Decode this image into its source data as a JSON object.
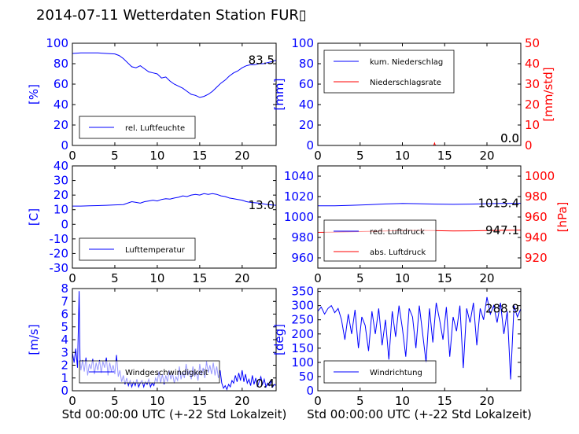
{
  "page": {
    "title": "2014-07-11 Wetterdaten Station FUR▯"
  },
  "colors": {
    "primary": "#0000ff",
    "secondary": "#ff0000",
    "frame": "#000000"
  },
  "chart_data": [
    {
      "id": "humidity",
      "type": "line",
      "title": "",
      "xlabel": "",
      "ylabel": "[%]",
      "xlim": [
        0,
        24
      ],
      "ylim": [
        0,
        100
      ],
      "xticks": [
        0,
        5,
        10,
        15,
        20
      ],
      "yticks": [
        0,
        20,
        40,
        60,
        80,
        100
      ],
      "legend": {
        "placement": "lower-left",
        "entries": [
          "rel. Luftfeuchte"
        ]
      },
      "last_value_label": "83.5",
      "series": [
        {
          "name": "rel. Luftfeuchte",
          "axis": "left",
          "color": "#0000ff",
          "x": [
            0,
            1,
            2,
            3,
            4,
            5,
            5.5,
            6,
            6.5,
            7,
            7.5,
            8,
            8.5,
            9,
            9.5,
            10,
            10.5,
            11,
            11.5,
            12,
            12.5,
            13,
            13.5,
            14,
            14.5,
            15,
            15.5,
            16,
            16.5,
            17,
            17.5,
            18,
            18.5,
            19,
            19.5,
            20,
            20.5,
            21,
            21.5,
            22,
            22.5,
            23,
            23.5,
            24
          ],
          "y": [
            90,
            90.5,
            90.5,
            90.5,
            90,
            89.5,
            88,
            85,
            81,
            77,
            76,
            78,
            75,
            72,
            71,
            70,
            66,
            67,
            63,
            60,
            58,
            56,
            53,
            50,
            49,
            47,
            48,
            50,
            53,
            57,
            61,
            64,
            68,
            71,
            73,
            76,
            78,
            79,
            79,
            80,
            80,
            81,
            82,
            83.5
          ]
        }
      ]
    },
    {
      "id": "precipitation",
      "type": "line",
      "title": "",
      "xlabel": "",
      "ylabel": "[mm]",
      "ylabel_right": "[mm/std]",
      "xlim": [
        0,
        24
      ],
      "ylim": [
        0,
        100
      ],
      "ylim_right": [
        0,
        50
      ],
      "xticks": [
        0,
        5,
        10,
        15,
        20
      ],
      "yticks": [
        0,
        20,
        40,
        60,
        80,
        100
      ],
      "yticks_right": [
        0,
        10,
        20,
        30,
        40,
        50
      ],
      "legend": {
        "placement": "upper-left",
        "entries": [
          "kum. Niederschlag",
          "Niederschlagsrate"
        ]
      },
      "last_value_label": "0.0",
      "last_value_label_2": "0.0",
      "series": [
        {
          "name": "kum. Niederschlag",
          "axis": "left",
          "color": "#0000ff",
          "x": [
            0,
            24
          ],
          "y": [
            0,
            0
          ]
        },
        {
          "name": "Niederschlagsrate",
          "axis": "right",
          "color": "#ff0000",
          "x": [
            0,
            13.7,
            13.8,
            13.9,
            24
          ],
          "y": [
            0,
            0,
            1.2,
            0,
            0
          ]
        }
      ]
    },
    {
      "id": "temperature",
      "type": "line",
      "title": "",
      "xlabel": "",
      "ylabel": "[C]",
      "xlim": [
        0,
        24
      ],
      "ylim": [
        -30,
        40
      ],
      "xticks": [
        0,
        5,
        10,
        15,
        20
      ],
      "yticks": [
        -30,
        -20,
        -10,
        0,
        10,
        20,
        30,
        40
      ],
      "legend": {
        "placement": "lower-left",
        "entries": [
          "Lufttemperatur"
        ]
      },
      "last_value_label": "13.0",
      "series": [
        {
          "name": "Lufttemperatur",
          "axis": "left",
          "color": "#0000ff",
          "x": [
            0,
            1,
            2,
            3,
            4,
            5,
            6,
            6.5,
            7,
            7.5,
            8,
            8.5,
            9,
            9.5,
            10,
            10.5,
            11,
            11.5,
            12,
            12.5,
            13,
            13.5,
            14,
            14.5,
            15,
            15.5,
            16,
            16.5,
            17,
            17.5,
            18,
            18.5,
            19,
            19.5,
            20,
            20.5,
            21,
            22,
            23,
            24
          ],
          "y": [
            12.5,
            12.5,
            12.7,
            12.8,
            13,
            13.3,
            13.5,
            14.5,
            15.5,
            15,
            14.5,
            15.5,
            16,
            16.5,
            16,
            17,
            17.5,
            17.3,
            18,
            18.5,
            19.5,
            19,
            20,
            20.5,
            20,
            21,
            20.5,
            21,
            20.5,
            19.5,
            19,
            18,
            17.5,
            17,
            16.5,
            15.5,
            15,
            14.5,
            13.5,
            13.0
          ]
        }
      ]
    },
    {
      "id": "pressure",
      "type": "line",
      "title": "",
      "xlabel": "",
      "ylabel": "",
      "ylabel_right": "[hPa]",
      "xlim": [
        0,
        24
      ],
      "ylim": [
        950,
        1050
      ],
      "ylim_right": [
        910,
        1010
      ],
      "xticks": [
        0,
        5,
        10,
        15,
        20
      ],
      "yticks": [
        960,
        980,
        1000,
        1020,
        1040
      ],
      "yticks_right": [
        920,
        940,
        960,
        980,
        1000
      ],
      "legend": {
        "placement": "lower-left",
        "entries": [
          "red. Luftdruck",
          "abs. Luftdruck"
        ]
      },
      "last_value_label": "1013.4",
      "last_value_label_2": "947.1",
      "series": [
        {
          "name": "red. Luftdruck",
          "axis": "left",
          "color": "#0000ff",
          "x": [
            0,
            2,
            4,
            6,
            8,
            10,
            12,
            14,
            16,
            18,
            20,
            22,
            24
          ],
          "y": [
            1011,
            1011,
            1011.5,
            1012,
            1012.8,
            1013.2,
            1013,
            1012.6,
            1012.4,
            1012.6,
            1013,
            1013.3,
            1013.4
          ]
        },
        {
          "name": "abs. Luftdruck",
          "axis": "right",
          "color": "#ff0000",
          "x": [
            0,
            2,
            4,
            6,
            8,
            10,
            12,
            14,
            16,
            18,
            20,
            22,
            24
          ],
          "y": [
            945,
            945.2,
            945.6,
            946,
            946.4,
            946.8,
            946.9,
            946.6,
            946.4,
            946.5,
            946.8,
            947.0,
            947.1
          ]
        }
      ]
    },
    {
      "id": "wind_speed",
      "type": "line",
      "title": "",
      "xlabel": "Std 00:00:00 UTC (+-22 Std Lokalzeit)",
      "ylabel": "[m/s]",
      "xlim": [
        0,
        24
      ],
      "ylim": [
        0,
        8
      ],
      "xticks": [
        0,
        5,
        10,
        15,
        20
      ],
      "yticks": [
        0,
        1,
        2,
        3,
        4,
        5,
        6,
        7,
        8
      ],
      "legend": {
        "placement": "lower-center",
        "entries": [
          "Windgeschwindigkeit"
        ]
      },
      "last_value_label": "0.4",
      "series": [
        {
          "name": "Windgeschwindigkeit",
          "axis": "left",
          "color": "#0000ff",
          "x": [
            0,
            0.2,
            0.4,
            0.6,
            0.8,
            0.9,
            1.0,
            1.2,
            1.4,
            1.6,
            1.8,
            2.0,
            2.2,
            2.4,
            2.6,
            2.8,
            3.0,
            3.2,
            3.4,
            3.6,
            3.8,
            4.0,
            4.2,
            4.4,
            4.6,
            4.8,
            5.0,
            5.2,
            5.4,
            5.6,
            5.8,
            6.0,
            6.2,
            6.4,
            6.6,
            6.8,
            7.0,
            7.2,
            7.4,
            7.6,
            7.8,
            8.0,
            8.2,
            8.4,
            8.6,
            8.8,
            9.0,
            9.2,
            9.4,
            9.6,
            9.8,
            10.0,
            10.2,
            10.4,
            10.6,
            10.8,
            11.0,
            11.2,
            11.4,
            11.6,
            11.8,
            12.0,
            12.2,
            12.4,
            12.6,
            12.8,
            13.0,
            13.2,
            13.4,
            13.6,
            13.8,
            14.0,
            14.2,
            14.4,
            14.6,
            14.8,
            15.0,
            15.2,
            15.4,
            15.6,
            15.8,
            16.0,
            16.2,
            16.4,
            16.6,
            16.8,
            17.0,
            17.2,
            17.4,
            17.6,
            17.8,
            18.0,
            18.2,
            18.4,
            18.6,
            18.8,
            19.0,
            19.2,
            19.4,
            19.6,
            19.8,
            20.0,
            20.2,
            20.4,
            20.6,
            20.8,
            21.0,
            21.2,
            21.4,
            21.6,
            21.8,
            22.0,
            22.2,
            22.4,
            22.6,
            22.8,
            23.0,
            23.2,
            23.4,
            23.6,
            23.8,
            24.0
          ],
          "y": [
            3.0,
            2.2,
            3.3,
            1.8,
            7.8,
            2.5,
            1.6,
            2.4,
            1.5,
            2.6,
            1.2,
            2.1,
            1.7,
            2.5,
            1.3,
            2.2,
            1.6,
            2.4,
            1.4,
            2.3,
            1.8,
            2.6,
            1.2,
            2.2,
            1.5,
            2.0,
            1.3,
            2.8,
            1.1,
            1.6,
            0.7,
            1.2,
            0.5,
            1.0,
            0.4,
            0.8,
            0.3,
            0.7,
            0.4,
            0.9,
            0.3,
            0.6,
            0.8,
            0.3,
            0.7,
            0.5,
            0.9,
            0.3,
            0.6,
            0.4,
            1.0,
            0.7,
            1.5,
            0.6,
            1.3,
            0.5,
            1.2,
            0.7,
            1.6,
            0.9,
            1.4,
            0.6,
            1.1,
            0.8,
            1.9,
            0.9,
            1.5,
            1.0,
            2.1,
            1.2,
            1.6,
            0.9,
            1.9,
            1.1,
            1.5,
            0.8,
            2.1,
            1.2,
            1.8,
            1.0,
            2.3,
            1.4,
            2.0,
            1.3,
            2.2,
            1.2,
            1.9,
            1.0,
            1.6,
            0.6,
            0.2,
            0.4,
            0.1,
            0.5,
            0.3,
            0.8,
            0.6,
            1.2,
            0.7,
            1.4,
            0.8,
            1.6,
            0.7,
            1.3,
            0.6,
            0.9,
            0.4,
            1.2,
            0.5,
            1.0,
            0.3,
            0.7,
            1.1,
            0.5,
            0.9,
            0.3,
            0.6,
            0.4,
            0.8,
            0.3,
            0.5,
            0.4
          ]
        }
      ]
    },
    {
      "id": "wind_direction",
      "type": "line",
      "title": "",
      "xlabel": "Std 00:00:00 UTC (+-22 Std Lokalzeit)",
      "ylabel": "[deg]",
      "xlim": [
        0,
        24
      ],
      "ylim": [
        0,
        360
      ],
      "xticks": [
        0,
        5,
        10,
        15,
        20
      ],
      "yticks": [
        0,
        50,
        100,
        150,
        200,
        250,
        300,
        350
      ],
      "legend": {
        "placement": "lower-left",
        "entries": [
          "Windrichtung"
        ]
      },
      "last_value_label": "288.9",
      "series": [
        {
          "name": "Windrichtung",
          "axis": "left",
          "color": "#0000ff",
          "x": [
            0,
            0.4,
            0.8,
            1.2,
            1.6,
            2.0,
            2.4,
            2.8,
            3.2,
            3.6,
            4.0,
            4.4,
            4.8,
            5.2,
            5.6,
            6.0,
            6.4,
            6.8,
            7.2,
            7.6,
            8.0,
            8.4,
            8.8,
            9.2,
            9.6,
            10.0,
            10.4,
            10.8,
            11.2,
            11.6,
            12.0,
            12.4,
            12.8,
            13.2,
            13.6,
            14.0,
            14.4,
            14.8,
            15.2,
            15.6,
            16.0,
            16.4,
            16.8,
            17.2,
            17.6,
            18.0,
            18.4,
            18.8,
            19.2,
            19.6,
            20.0,
            20.4,
            20.8,
            21.2,
            21.6,
            22.0,
            22.4,
            22.8,
            23.2,
            23.6,
            24.0
          ],
          "y": [
            280,
            295,
            270,
            290,
            300,
            275,
            290,
            250,
            180,
            270,
            200,
            285,
            150,
            260,
            230,
            140,
            280,
            200,
            290,
            160,
            250,
            110,
            280,
            190,
            300,
            220,
            120,
            290,
            260,
            150,
            300,
            200,
            100,
            290,
            170,
            310,
            250,
            180,
            295,
            120,
            260,
            210,
            300,
            80,
            290,
            240,
            310,
            160,
            290,
            250,
            330,
            270,
            300,
            240,
            310,
            200,
            280,
            40,
            300,
            260,
            288.9
          ]
        }
      ]
    }
  ]
}
